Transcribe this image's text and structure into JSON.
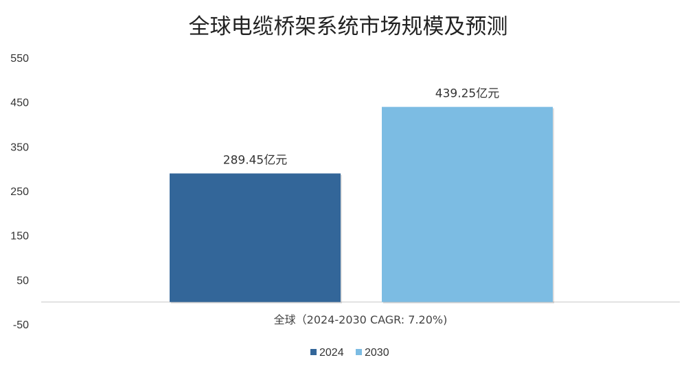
{
  "chart_data": {
    "type": "bar",
    "title": "全球电缆桥架系统市场规模及预测",
    "xlabel": "",
    "ylabel": "",
    "ylim": [
      -50,
      550
    ],
    "yticks": [
      -50,
      50,
      150,
      250,
      350,
      450,
      550
    ],
    "categories": [
      "全球（2024-2030 CAGR: 7.20%)"
    ],
    "series": [
      {
        "name": "2024",
        "values": [
          289.45
        ],
        "label": "289.45亿元",
        "color": "#336699"
      },
      {
        "name": "2030",
        "values": [
          439.25
        ],
        "label": "439.25亿元",
        "color": "#7cbce3"
      }
    ],
    "grid": false,
    "legend": "bottom-center",
    "colors": {
      "axis_line": "#d9d9d9",
      "text": "#333333"
    }
  }
}
